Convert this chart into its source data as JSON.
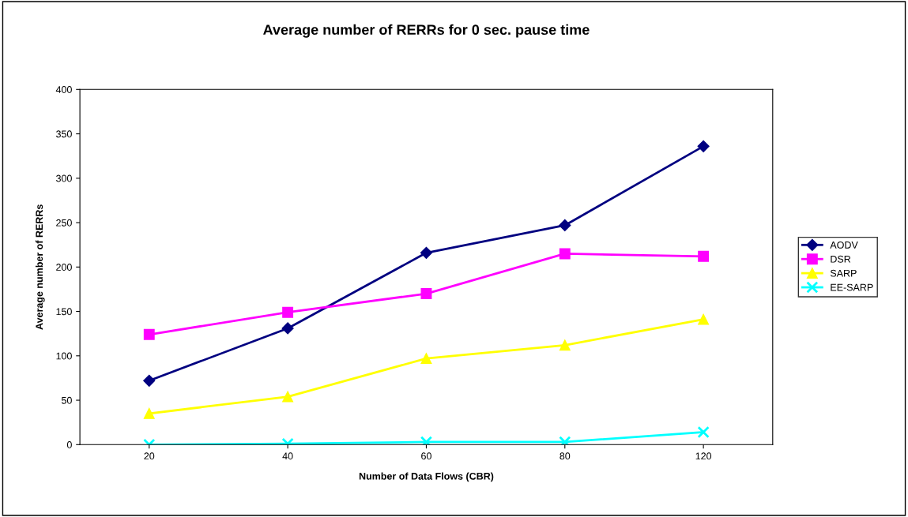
{
  "chart_data": {
    "type": "line",
    "title": "Average number of RERRs for 0 sec. pause time",
    "xlabel": "Number of Data Flows (CBR)",
    "ylabel": "Average number of RERRs",
    "categories": [
      "20",
      "40",
      "60",
      "80",
      "120"
    ],
    "series": [
      {
        "name": "AODV",
        "color": "#000080",
        "marker": "diamond",
        "values": [
          72,
          131,
          216,
          247,
          336
        ]
      },
      {
        "name": "DSR",
        "color": "#ff00ff",
        "marker": "square",
        "values": [
          124,
          149,
          170,
          215,
          212
        ]
      },
      {
        "name": "SARP",
        "color": "#ffff00",
        "marker": "triangle",
        "values": [
          35,
          54,
          97,
          112,
          141
        ]
      },
      {
        "name": "EE-SARP",
        "color": "#00ffff",
        "marker": "cross",
        "values": [
          0,
          1,
          3,
          3,
          14
        ]
      }
    ],
    "ylim": [
      0,
      400
    ],
    "yticks": [
      0,
      50,
      100,
      150,
      200,
      250,
      300,
      350,
      400
    ],
    "grid": false,
    "legend": "right",
    "line_style": "solid"
  }
}
